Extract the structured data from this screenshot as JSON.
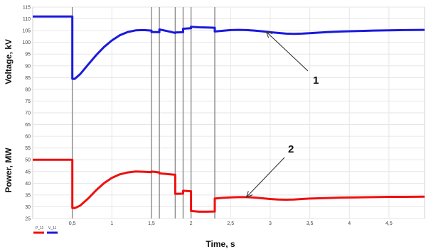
{
  "chart_data": {
    "type": "line",
    "xlabel": "Time, s",
    "ylabel_voltage": "Voltage, kV",
    "ylabel_power": "Power, MW",
    "xlim": [
      0,
      4.95
    ],
    "x_ticks": [
      "0,5",
      "1",
      "1,5",
      "2",
      "2,5",
      "3",
      "3,5",
      "4",
      "4,5"
    ],
    "x_tick_values": [
      0.5,
      1,
      1.5,
      2,
      2.5,
      3,
      3.5,
      4,
      4.5
    ],
    "ylim": [
      25,
      115
    ],
    "y_ticks": [
      25,
      30,
      35,
      40,
      45,
      50,
      55,
      60,
      65,
      70,
      75,
      80,
      85,
      90,
      95,
      100,
      105,
      110,
      115
    ],
    "grid": true,
    "switching_times": [
      0.5,
      1.5,
      1.6,
      1.8,
      1.9,
      2.0,
      2.3
    ],
    "series": [
      {
        "name": "V_11",
        "color": "#1a1adc",
        "x": [
          0,
          0.5,
          0.5,
          0.53,
          0.6,
          0.7,
          0.8,
          0.9,
          1.0,
          1.1,
          1.2,
          1.3,
          1.4,
          1.5,
          1.5,
          1.6,
          1.6,
          1.7,
          1.8,
          1.8,
          1.9,
          1.9,
          2.0,
          2.0,
          2.1,
          2.2,
          2.3,
          2.3,
          2.4,
          2.5,
          2.6,
          2.7,
          2.8,
          2.9,
          3.0,
          3.1,
          3.2,
          3.3,
          3.4,
          3.5,
          3.7,
          3.9,
          4.1,
          4.3,
          4.5,
          4.7,
          4.95
        ],
        "values": [
          111,
          111,
          84.5,
          84.4,
          86.5,
          90.5,
          94.5,
          98,
          100.8,
          103,
          104.4,
          105.1,
          105.2,
          105,
          104.4,
          104.3,
          105.5,
          104.8,
          104,
          104.2,
          104.3,
          105.8,
          106,
          106.6,
          106.4,
          106.3,
          106.2,
          104.6,
          104.9,
          105.2,
          105.3,
          105.2,
          105,
          104.7,
          104.3,
          104,
          103.7,
          103.6,
          103.7,
          103.9,
          104.3,
          104.6,
          104.8,
          105,
          105.1,
          105.2,
          105.3
        ]
      },
      {
        "name": "P_11",
        "color": "#ee1010",
        "x": [
          0,
          0.5,
          0.5,
          0.53,
          0.6,
          0.7,
          0.8,
          0.9,
          1.0,
          1.1,
          1.2,
          1.3,
          1.4,
          1.5,
          1.5,
          1.6,
          1.6,
          1.7,
          1.8,
          1.8,
          1.9,
          1.9,
          2.0,
          2.0,
          2.1,
          2.2,
          2.3,
          2.3,
          2.4,
          2.5,
          2.6,
          2.7,
          2.8,
          2.9,
          3.0,
          3.1,
          3.2,
          3.3,
          3.4,
          3.5,
          3.7,
          3.9,
          4.1,
          4.3,
          4.5,
          4.7,
          4.95
        ],
        "values": [
          50,
          50,
          29.5,
          29.4,
          30.5,
          33.5,
          37,
          40,
          42.3,
          43.8,
          44.6,
          45,
          44.9,
          44.7,
          45,
          44.6,
          44.2,
          43.9,
          43.6,
          35.5,
          35.6,
          36.8,
          36.6,
          28.2,
          27.9,
          27.9,
          28.0,
          33.5,
          33.8,
          34.0,
          34.1,
          34.1,
          33.9,
          33.6,
          33.3,
          33.1,
          33.0,
          33.1,
          33.3,
          33.5,
          33.7,
          33.9,
          34.0,
          34.1,
          34.2,
          34.2,
          34.3
        ]
      }
    ],
    "annotations": [
      {
        "label": "1",
        "points_to_series": "V_11",
        "at_x": 2.95
      },
      {
        "label": "2",
        "points_to_series": "P_11",
        "at_x": 2.7
      }
    ],
    "legend_position": "bottom-left"
  }
}
